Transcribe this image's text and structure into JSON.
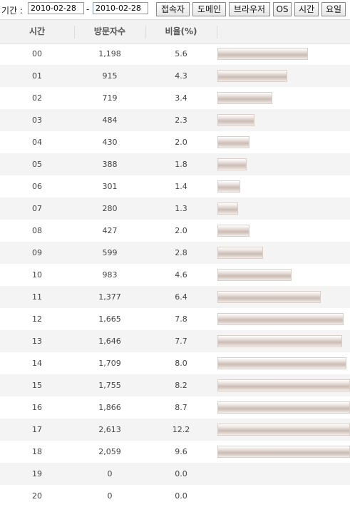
{
  "filter": {
    "period_label": "기간 :",
    "start_date": "2010-02-28",
    "separator": "-",
    "end_date": "2010-02-28",
    "buttons": [
      "접속자",
      "도메인",
      "브라우저",
      "OS",
      "시간",
      "요일"
    ]
  },
  "table": {
    "headers": [
      "시간",
      "방문자수",
      "비율(%)"
    ],
    "rows": [
      {
        "hour": "00",
        "visits": "1,198",
        "ratio": "5.6"
      },
      {
        "hour": "01",
        "visits": "915",
        "ratio": "4.3"
      },
      {
        "hour": "02",
        "visits": "719",
        "ratio": "3.4"
      },
      {
        "hour": "03",
        "visits": "484",
        "ratio": "2.3"
      },
      {
        "hour": "04",
        "visits": "430",
        "ratio": "2.0"
      },
      {
        "hour": "05",
        "visits": "388",
        "ratio": "1.8"
      },
      {
        "hour": "06",
        "visits": "301",
        "ratio": "1.4"
      },
      {
        "hour": "07",
        "visits": "280",
        "ratio": "1.3"
      },
      {
        "hour": "08",
        "visits": "427",
        "ratio": "2.0"
      },
      {
        "hour": "09",
        "visits": "599",
        "ratio": "2.8"
      },
      {
        "hour": "10",
        "visits": "983",
        "ratio": "4.6"
      },
      {
        "hour": "11",
        "visits": "1,377",
        "ratio": "6.4"
      },
      {
        "hour": "12",
        "visits": "1,665",
        "ratio": "7.8"
      },
      {
        "hour": "13",
        "visits": "1,646",
        "ratio": "7.7"
      },
      {
        "hour": "14",
        "visits": "1,709",
        "ratio": "8.0"
      },
      {
        "hour": "15",
        "visits": "1,755",
        "ratio": "8.2"
      },
      {
        "hour": "16",
        "visits": "1,866",
        "ratio": "8.7"
      },
      {
        "hour": "17",
        "visits": "2,613",
        "ratio": "12.2"
      },
      {
        "hour": "18",
        "visits": "2,059",
        "ratio": "9.6"
      },
      {
        "hour": "19",
        "visits": "0",
        "ratio": "0.0"
      },
      {
        "hour": "20",
        "visits": "0",
        "ratio": "0.0"
      }
    ]
  }
}
